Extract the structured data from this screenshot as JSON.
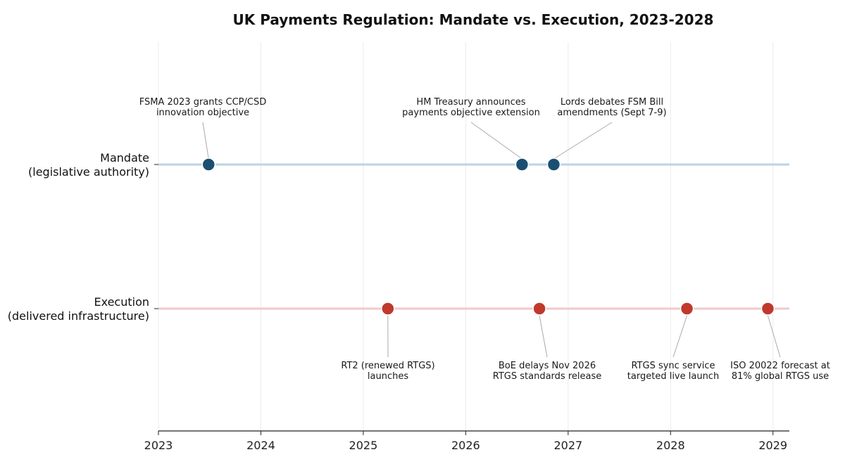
{
  "chart_data": {
    "type": "scatter",
    "title": "UK Payments Regulation: Mandate vs. Execution, 2023-2028",
    "xlabel": "",
    "ylabel": "",
    "xlim": [
      2023.0,
      2029.16
    ],
    "xticks": [
      "2023",
      "2024",
      "2025",
      "2026",
      "2027",
      "2028",
      "2029"
    ],
    "grid": "vertical",
    "lanes": [
      {
        "name": "Mandate",
        "subtitle": "(legislative authority)",
        "color": "#1b4f72",
        "line_color": "#bcd3e3",
        "events": [
          {
            "x": 2023.49,
            "label": [
              "FSMA 2023 grants CCP/CSD",
              "innovation objective"
            ]
          },
          {
            "x": 2026.55,
            "label": [
              "HM Treasury announces",
              "payments objective extension"
            ]
          },
          {
            "x": 2026.86,
            "label": [
              "Lords debates FSM Bill",
              "amendments (Sept 7-9)"
            ]
          }
        ]
      },
      {
        "name": "Execution",
        "subtitle": "(delivered infrastructure)",
        "color": "#c0392b",
        "line_color": "#f0c9c9",
        "events": [
          {
            "x": 2025.24,
            "label": [
              "RT2 (renewed RTGS)",
              "launches"
            ]
          },
          {
            "x": 2026.72,
            "label": [
              "BoE delays Nov 2026",
              "RTGS standards release"
            ]
          },
          {
            "x": 2028.16,
            "label": [
              "RTGS sync service",
              "targeted live launch"
            ]
          },
          {
            "x": 2028.95,
            "label": [
              "ISO 20022 forecast at",
              "81% global RTGS use"
            ]
          }
        ]
      }
    ]
  }
}
